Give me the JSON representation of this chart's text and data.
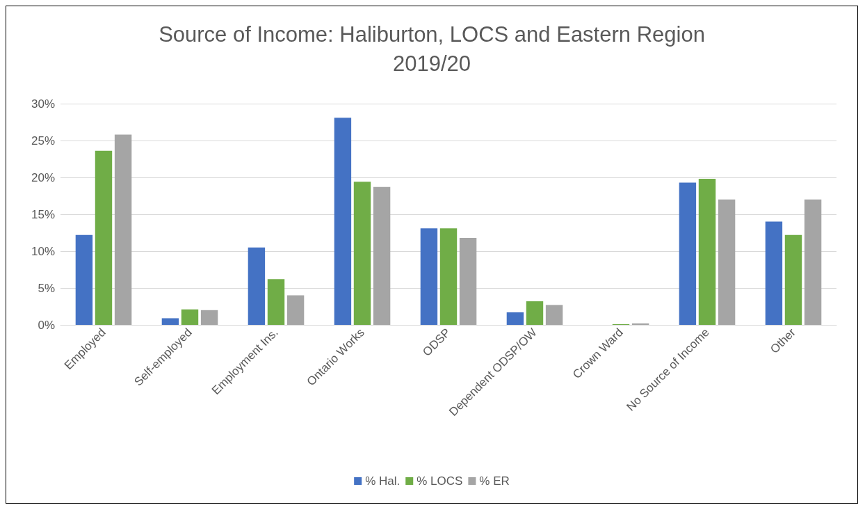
{
  "chart_data": {
    "type": "bar",
    "title": "Source of Income: Haliburton, LOCS and Eastern Region\n2019/20",
    "categories": [
      "Employed",
      "Self-employed",
      "Employment Ins.",
      "Ontario Works",
      "ODSP",
      "Dependent ODSP/OW",
      "Crown Ward",
      "No Source of Income",
      "Other"
    ],
    "series": [
      {
        "name": "% Hal.",
        "color": "#4472c4",
        "values": [
          12.2,
          0.9,
          10.5,
          28.1,
          13.1,
          1.7,
          0,
          19.3,
          14.0
        ]
      },
      {
        "name": "% LOCS",
        "color": "#70ad47",
        "values": [
          23.6,
          2.1,
          6.2,
          19.4,
          13.1,
          3.2,
          0.1,
          19.8,
          12.2
        ]
      },
      {
        "name": "% ER",
        "color": "#a5a5a5",
        "values": [
          25.8,
          2.0,
          4.0,
          18.7,
          11.8,
          2.7,
          0.2,
          17.0,
          17.0
        ]
      }
    ],
    "ylim": [
      0,
      30
    ],
    "yticks": [
      {
        "value": 0,
        "label": "0%"
      },
      {
        "value": 5,
        "label": "5%"
      },
      {
        "value": 10,
        "label": "10%"
      },
      {
        "value": 15,
        "label": "15%"
      },
      {
        "value": 20,
        "label": "20%"
      },
      {
        "value": 25,
        "label": "25%"
      },
      {
        "value": 30,
        "label": "30%"
      }
    ],
    "grid": "y",
    "legend": "bottom"
  }
}
